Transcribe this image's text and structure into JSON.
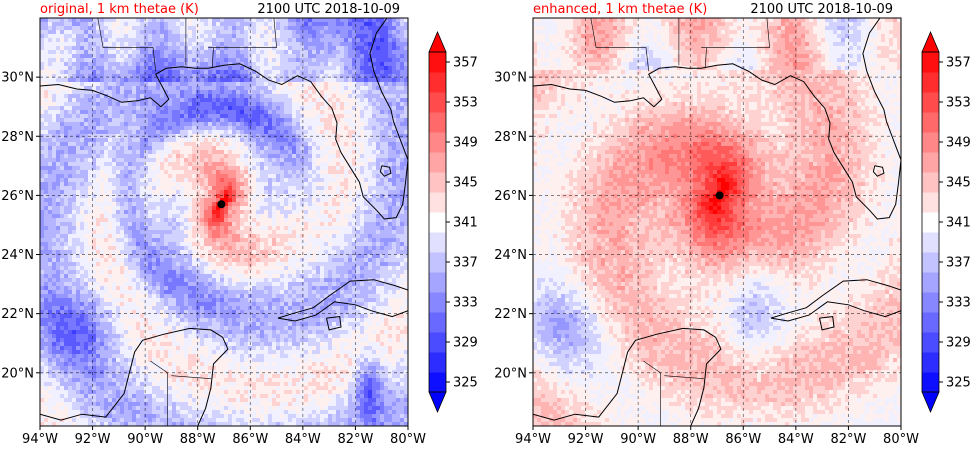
{
  "figure": {
    "panels": [
      {
        "title_left": "original, 1 km thetae (K)",
        "title_right": "2100 UTC 2018-10-09",
        "title_left_color": "#ff0000",
        "storm_center": {
          "lon": -87.1,
          "lat": 25.7
        }
      },
      {
        "title_left": "enhanced, 1 km thetae (K)",
        "title_right": "2100 UTC 2018-10-09",
        "title_left_color": "#ff0000",
        "storm_center": {
          "lon": -86.9,
          "lat": 26.0
        }
      }
    ]
  },
  "chart_data": [
    {
      "type": "heatmap",
      "title": "original, 1 km thetae (K)",
      "subtitle": "2100 UTC 2018-10-09",
      "xlim": [
        -94,
        -80
      ],
      "ylim": [
        18.2,
        32
      ],
      "x_ticks": [
        -94,
        -92,
        -90,
        -88,
        -86,
        -84,
        -82,
        -80
      ],
      "x_tick_labels": [
        "94°W",
        "92°W",
        "90°W",
        "88°W",
        "86°W",
        "84°W",
        "82°W",
        "80°W"
      ],
      "y_ticks": [
        20,
        22,
        24,
        26,
        28,
        30
      ],
      "y_tick_labels": [
        "20°N",
        "22°N",
        "24°N",
        "26°N",
        "28°N",
        "30°N"
      ],
      "grid": true,
      "colorbar": {
        "min": 325,
        "max": 359,
        "step": 2,
        "tick_values": [
          325,
          329,
          333,
          337,
          341,
          345,
          349,
          353,
          357
        ],
        "tick_labels": [
          "325",
          "329",
          "333",
          "337",
          "341",
          "345",
          "349",
          "353",
          "357"
        ],
        "extend": "both",
        "colormap": "bwr",
        "colors": [
          "#0000ff",
          "#ffffff",
          "#ff0000"
        ]
      }
    },
    {
      "type": "heatmap",
      "title": "enhanced, 1 km thetae (K)",
      "subtitle": "2100 UTC 2018-10-09",
      "xlim": [
        -94,
        -80
      ],
      "ylim": [
        18.2,
        32
      ],
      "x_ticks": [
        -94,
        -92,
        -90,
        -88,
        -86,
        -84,
        -82,
        -80
      ],
      "x_tick_labels": [
        "94°W",
        "92°W",
        "90°W",
        "88°W",
        "86°W",
        "84°W",
        "82°W",
        "80°W"
      ],
      "y_ticks": [
        20,
        22,
        24,
        26,
        28,
        30
      ],
      "y_tick_labels": [
        "20°N",
        "22°N",
        "24°N",
        "26°N",
        "28°N",
        "30°N"
      ],
      "grid": true,
      "colorbar": {
        "min": 325,
        "max": 359,
        "step": 2,
        "tick_values": [
          325,
          329,
          333,
          337,
          341,
          345,
          349,
          353,
          357
        ],
        "tick_labels": [
          "325",
          "329",
          "333",
          "337",
          "341",
          "345",
          "349",
          "353",
          "357"
        ],
        "extend": "both",
        "colormap": "bwr",
        "colors": [
          "#0000ff",
          "#ffffff",
          "#ff0000"
        ]
      }
    }
  ]
}
